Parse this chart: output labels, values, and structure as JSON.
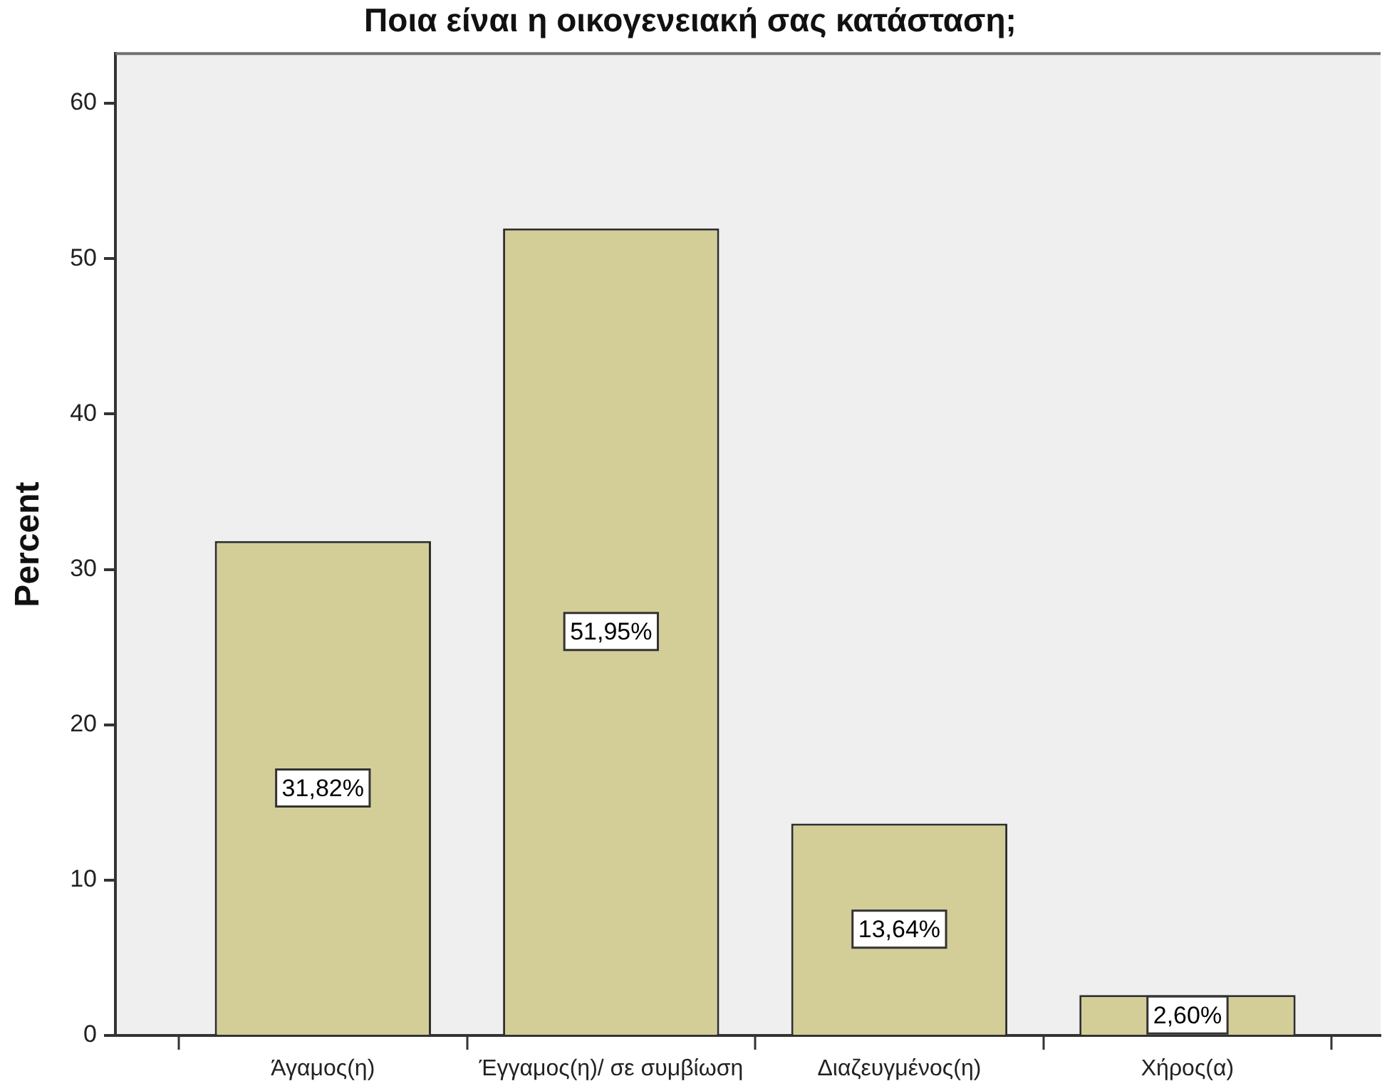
{
  "chart_data": {
    "type": "bar",
    "title": "Ποια είναι η οικογενειακή σας κατάσταση;",
    "ylabel": "Percent",
    "categories": [
      "Άγαμος(η)",
      "Έγγαμος(η)/ σε συμβίωση",
      "Διαζευγμένος(η)",
      "Χήρος(α)"
    ],
    "values": [
      31.82,
      51.95,
      13.64,
      2.6
    ],
    "value_labels": [
      "31,82%",
      "51,95%",
      "13,64%",
      "2,60%"
    ],
    "color": "#d3ce98",
    "ylim": [
      0,
      63.2
    ],
    "yticks": [
      0,
      10,
      20,
      30,
      40,
      50,
      60
    ]
  }
}
